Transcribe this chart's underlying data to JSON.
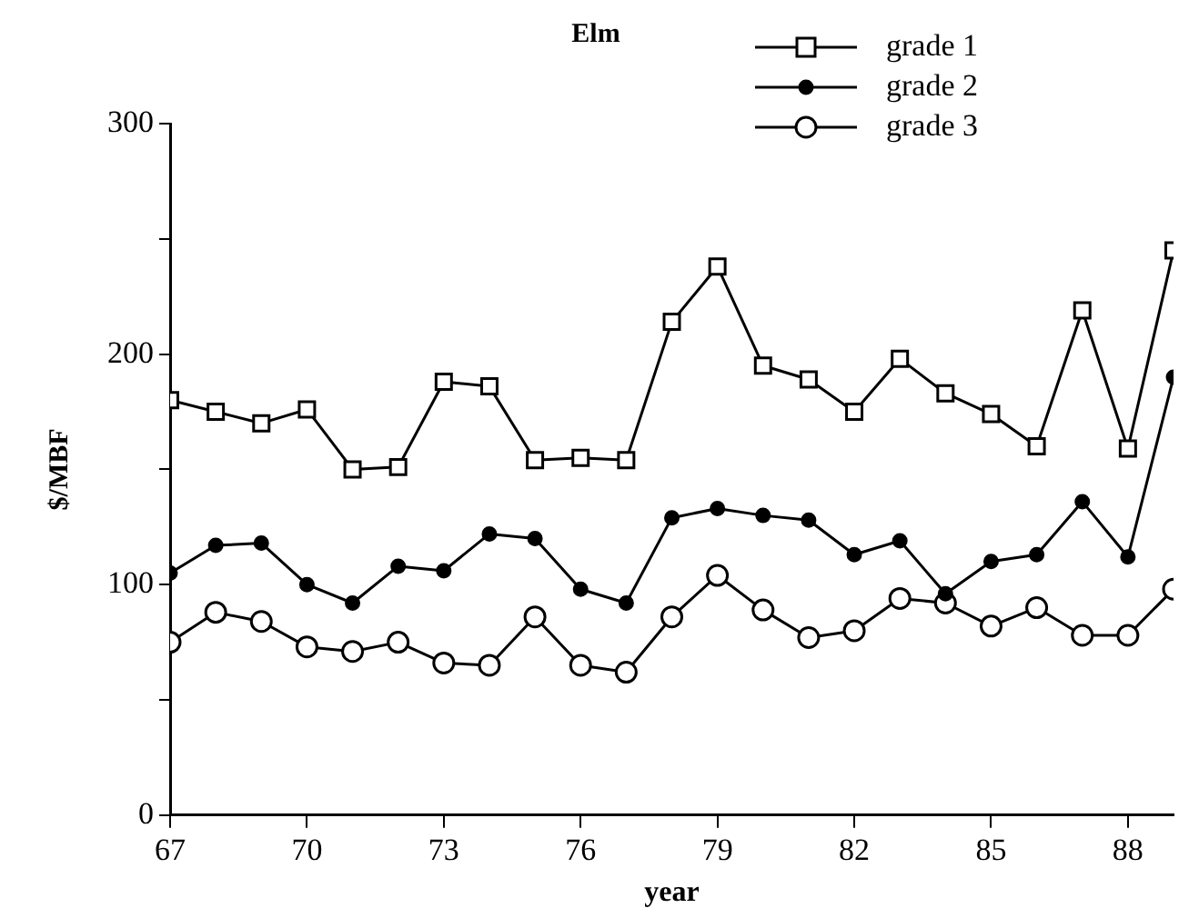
{
  "chart_data": {
    "type": "line",
    "title": "Elm",
    "xlabel": "year",
    "ylabel": "$/MBF",
    "x": [
      67,
      68,
      69,
      70,
      71,
      72,
      73,
      74,
      75,
      76,
      77,
      78,
      79,
      80,
      81,
      82,
      83,
      84,
      85,
      86,
      87,
      88,
      89
    ],
    "series": [
      {
        "name": "grade 1",
        "color": "#000000",
        "marker": "square",
        "values": [
          180,
          175,
          170,
          176,
          150,
          151,
          188,
          186,
          154,
          155,
          154,
          214,
          238,
          195,
          189,
          175,
          198,
          183,
          174,
          160,
          219,
          159,
          245
        ]
      },
      {
        "name": "grade 2",
        "color": "#000000",
        "marker": "circle",
        "values": [
          105,
          117,
          118,
          100,
          92,
          108,
          106,
          122,
          120,
          98,
          92,
          129,
          133,
          130,
          128,
          113,
          119,
          96,
          110,
          113,
          136,
          112,
          190
        ]
      },
      {
        "name": "grade 3",
        "color": "#000000",
        "marker": "open circle",
        "values": [
          75,
          88,
          84,
          73,
          71,
          75,
          66,
          65,
          86,
          65,
          62,
          86,
          104,
          89,
          77,
          80,
          94,
          92,
          82,
          90,
          78,
          78,
          98
        ]
      }
    ],
    "xlim": [
      67,
      89
    ],
    "xticks": [
      67,
      70,
      73,
      76,
      79,
      82,
      85,
      88
    ],
    "ylim": [
      0,
      300
    ],
    "yticks": [
      0,
      {
        "value": 50,
        "label": null
      },
      100,
      {
        "value": 150,
        "label": null
      },
      200,
      {
        "value": 250,
        "label": null
      },
      300
    ],
    "grid": false,
    "legend": "top right"
  }
}
